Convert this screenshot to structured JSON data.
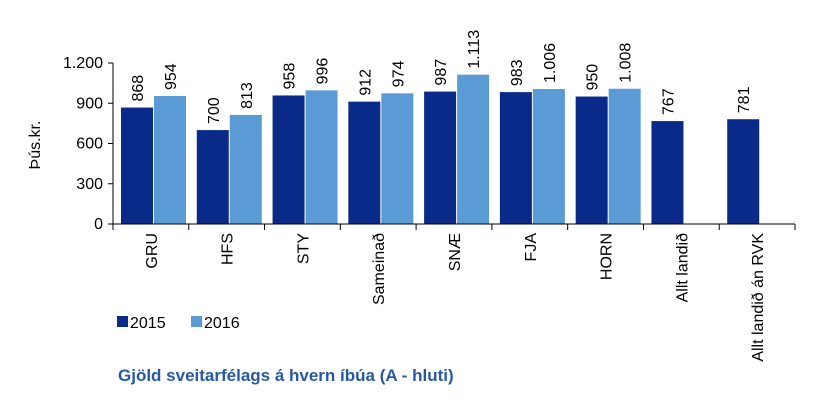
{
  "chart_data": {
    "type": "bar",
    "title": "Gjöld sveitarfélags á hvern íbúa (A - hluti)",
    "y_label": "Þús.kr.",
    "categories": [
      "GRU",
      "HFS",
      "STY",
      "Sameinað",
      "SNÆ",
      "FJA",
      "HORN",
      "Allt landið",
      "Allt landið án RVK"
    ],
    "series": [
      {
        "name": "2015",
        "color": "#0a2a8a",
        "values": [
          868,
          700,
          958,
          912,
          987,
          983,
          950,
          767,
          781
        ],
        "value_labels": [
          "868",
          "700",
          "958",
          "912",
          "987",
          "983",
          "950",
          "767",
          "781"
        ]
      },
      {
        "name": "2016",
        "color": "#5b9bd5",
        "values": [
          954,
          813,
          996,
          974,
          1113,
          1006,
          1008,
          null,
          null
        ],
        "value_labels": [
          "954",
          "813",
          "996",
          "974",
          "1.113",
          "1.006",
          "1.008",
          null,
          null
        ]
      }
    ],
    "ylim": [
      0,
      1200
    ],
    "yticks": [
      0,
      300,
      600,
      900,
      {
        "value": 1200,
        "label": "1.200"
      }
    ],
    "grid": false,
    "legend": "bottom-left"
  }
}
